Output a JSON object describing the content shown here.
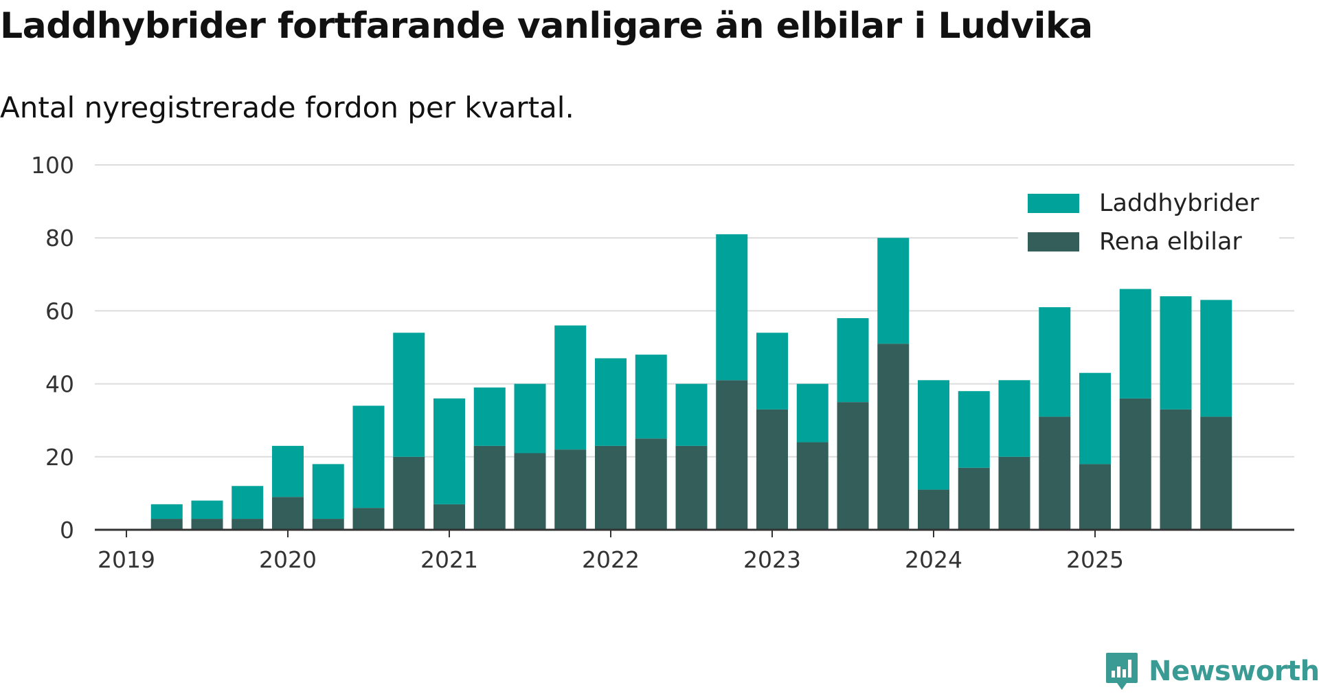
{
  "chart_data": {
    "type": "bar",
    "stacked": true,
    "title": "Laddhybrider fortfarande vanligare än elbilar i Ludvika",
    "subtitle": "Antal nyregistrerade fordon per kvartal.",
    "xlabel": "",
    "ylabel": "",
    "ylim": [
      0,
      100
    ],
    "yticks": [
      0,
      20,
      40,
      60,
      80,
      100
    ],
    "grid": true,
    "legend_position": "top-right",
    "year_labels": [
      "2019",
      "2020",
      "2021",
      "2022",
      "2023",
      "2024",
      "2025"
    ],
    "categories": [
      "2019 Q1",
      "2019 Q2",
      "2019 Q3",
      "2019 Q4",
      "2020 Q1",
      "2020 Q2",
      "2020 Q3",
      "2020 Q4",
      "2021 Q1",
      "2021 Q2",
      "2021 Q3",
      "2021 Q4",
      "2022 Q1",
      "2022 Q2",
      "2022 Q3",
      "2022 Q4",
      "2023 Q1",
      "2023 Q2",
      "2023 Q3",
      "2023 Q4",
      "2024 Q1",
      "2024 Q2",
      "2024 Q3",
      "2024 Q4",
      "2025 Q1",
      "2025 Q2",
      "2025 Q3"
    ],
    "series": [
      {
        "name": "Rena elbilar",
        "color": "#335e59",
        "values": [
          3,
          3,
          3,
          9,
          3,
          6,
          20,
          7,
          23,
          21,
          22,
          23,
          25,
          23,
          41,
          33,
          24,
          35,
          51,
          11,
          17,
          20,
          31,
          18,
          36,
          33,
          31
        ]
      },
      {
        "name": "Laddhybrider",
        "color": "#00a29a",
        "values": [
          4,
          5,
          9,
          14,
          15,
          28,
          34,
          29,
          16,
          19,
          34,
          24,
          23,
          17,
          40,
          21,
          16,
          23,
          29,
          30,
          21,
          21,
          30,
          25,
          30,
          31,
          32
        ]
      }
    ],
    "legend_order": [
      "Laddhybrider",
      "Rena elbilar"
    ]
  },
  "branding": {
    "logo_text": "Newsworthy",
    "logo_color": "#3a9a94",
    "icon": "newsworthy-logo-icon"
  }
}
